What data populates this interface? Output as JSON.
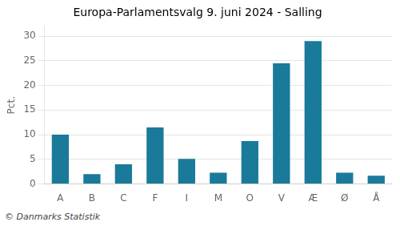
{
  "chart_data": {
    "type": "bar",
    "title": "Europa-Parlamentsvalg 9. juni 2024 - Salling",
    "ylabel": "Pct.",
    "footer": "© Danmarks Statistik",
    "categories": [
      "A",
      "B",
      "C",
      "F",
      "I",
      "M",
      "O",
      "V",
      "Æ",
      "Ø",
      "Å"
    ],
    "values": [
      10.0,
      2.0,
      4.0,
      11.5,
      5.1,
      2.3,
      8.7,
      24.5,
      29.0,
      2.3,
      1.7
    ],
    "color": "#1a7a9a",
    "ylim": [
      0,
      32
    ],
    "yticks": [
      0,
      5,
      10,
      15,
      20,
      25,
      30
    ],
    "grid": true
  }
}
